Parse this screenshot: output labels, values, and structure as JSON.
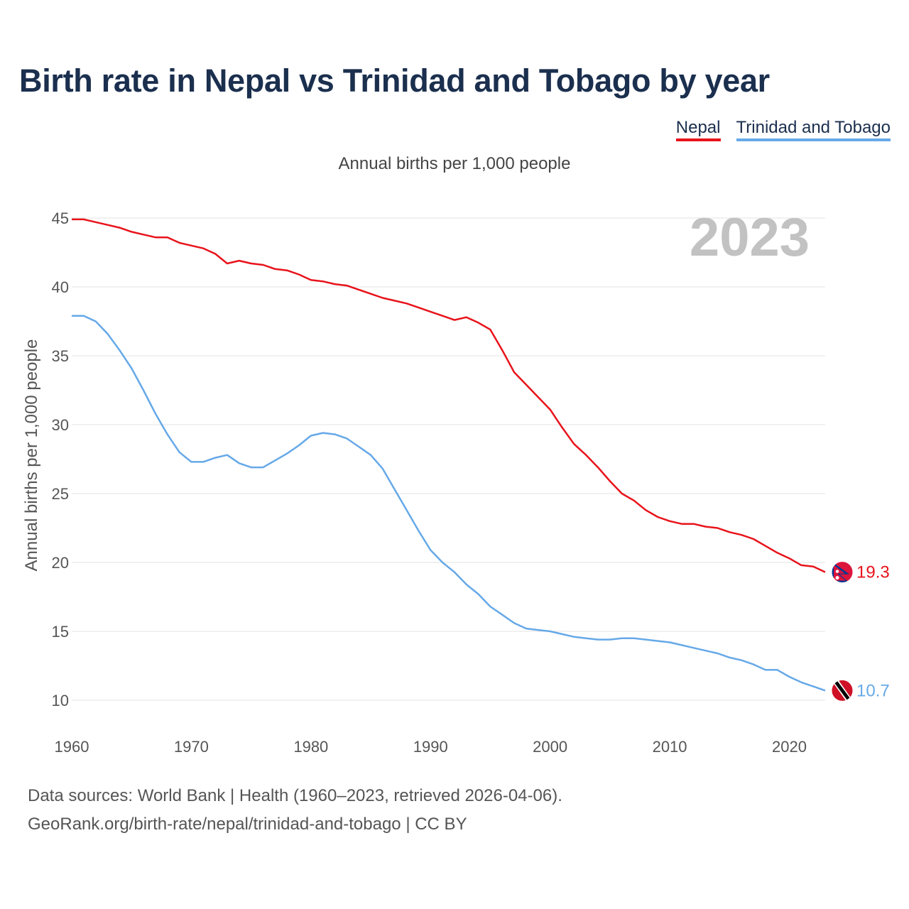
{
  "title": "Birth rate in Nepal vs Trinidad and Tobago by year",
  "subtitle": "Annual births per 1,000 people",
  "legend": [
    {
      "label": "Nepal",
      "color": "#e8131b"
    },
    {
      "label": "Trinidad and Tobago",
      "color": "#66a9e8"
    }
  ],
  "year_watermark": "2023",
  "footer": {
    "line1": "Data sources: World Bank | Health (1960–2023, retrieved 2026-04-06).",
    "line2": "GeoRank.org/birth-rate/nepal/trinidad-and-tobago | CC BY"
  },
  "chart_data": {
    "type": "line",
    "title": "Birth rate in Nepal vs Trinidad and Tobago by year",
    "ylabel": "Annual births per 1,000 people",
    "xlabel": "",
    "xlim": [
      1960,
      2023
    ],
    "ylim": [
      10,
      45
    ],
    "x_ticks": [
      1960,
      1970,
      1980,
      1990,
      2000,
      2010,
      2020
    ],
    "y_ticks": [
      10,
      15,
      20,
      25,
      30,
      35,
      40,
      45
    ],
    "grid": true,
    "series": [
      {
        "name": "Nepal",
        "color": "#e8131b",
        "icon": "nepal-flag-icon",
        "end_label": "19.3",
        "x": [
          1960,
          1961,
          1962,
          1963,
          1964,
          1965,
          1966,
          1967,
          1968,
          1969,
          1970,
          1971,
          1972,
          1973,
          1974,
          1975,
          1976,
          1977,
          1978,
          1979,
          1980,
          1981,
          1982,
          1983,
          1984,
          1985,
          1986,
          1987,
          1988,
          1989,
          1990,
          1991,
          1992,
          1993,
          1994,
          1995,
          1996,
          1997,
          1998,
          1999,
          2000,
          2001,
          2002,
          2003,
          2004,
          2005,
          2006,
          2007,
          2008,
          2009,
          2010,
          2011,
          2012,
          2013,
          2014,
          2015,
          2016,
          2017,
          2018,
          2019,
          2020,
          2021,
          2022,
          2023
        ],
        "values": [
          44.9,
          44.9,
          44.7,
          44.5,
          44.3,
          44.0,
          43.8,
          43.6,
          43.6,
          43.2,
          43.0,
          42.8,
          42.4,
          41.7,
          41.9,
          41.7,
          41.6,
          41.3,
          41.2,
          40.9,
          40.5,
          40.4,
          40.2,
          40.1,
          39.8,
          39.5,
          39.2,
          39.0,
          38.8,
          38.5,
          38.2,
          37.9,
          37.6,
          37.8,
          37.4,
          36.9,
          35.4,
          33.8,
          32.9,
          32.0,
          31.1,
          29.8,
          28.6,
          27.8,
          26.9,
          25.9,
          25.0,
          24.5,
          23.8,
          23.3,
          23.0,
          22.8,
          22.8,
          22.6,
          22.5,
          22.2,
          22.0,
          21.7,
          21.2,
          20.7,
          20.3,
          19.8,
          19.7,
          19.3
        ]
      },
      {
        "name": "Trinidad and Tobago",
        "color": "#66a9e8",
        "icon": "trinidad-and-tobago-flag-icon",
        "end_label": "10.7",
        "x": [
          1960,
          1961,
          1962,
          1963,
          1964,
          1965,
          1966,
          1967,
          1968,
          1969,
          1970,
          1971,
          1972,
          1973,
          1974,
          1975,
          1976,
          1977,
          1978,
          1979,
          1980,
          1981,
          1982,
          1983,
          1984,
          1985,
          1986,
          1987,
          1988,
          1989,
          1990,
          1991,
          1992,
          1993,
          1994,
          1995,
          1996,
          1997,
          1998,
          1999,
          2000,
          2001,
          2002,
          2003,
          2004,
          2005,
          2006,
          2007,
          2008,
          2009,
          2010,
          2011,
          2012,
          2013,
          2014,
          2015,
          2016,
          2017,
          2018,
          2019,
          2020,
          2021,
          2022,
          2023
        ],
        "values": [
          37.9,
          37.9,
          37.5,
          36.6,
          35.4,
          34.1,
          32.5,
          30.8,
          29.3,
          28.0,
          27.3,
          27.3,
          27.6,
          27.8,
          27.2,
          26.9,
          26.9,
          27.4,
          27.9,
          28.5,
          29.2,
          29.4,
          29.3,
          29.0,
          28.4,
          27.8,
          26.8,
          25.3,
          23.8,
          22.3,
          20.9,
          20.0,
          19.3,
          18.4,
          17.7,
          16.8,
          16.2,
          15.6,
          15.2,
          15.1,
          15.0,
          14.8,
          14.6,
          14.5,
          14.4,
          14.4,
          14.5,
          14.5,
          14.4,
          14.3,
          14.2,
          14.0,
          13.8,
          13.6,
          13.4,
          13.1,
          12.9,
          12.6,
          12.2,
          12.2,
          11.7,
          11.3,
          11.0,
          10.7
        ]
      }
    ]
  }
}
